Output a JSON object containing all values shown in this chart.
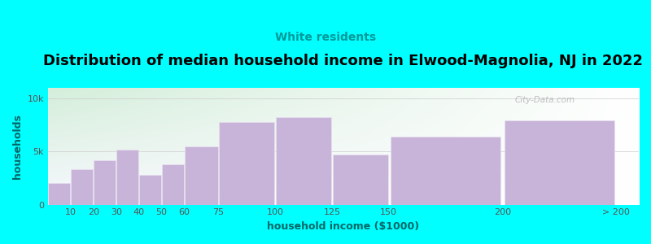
{
  "title": "Distribution of median household income in Elwood-Magnolia, NJ in 2022",
  "subtitle": "White residents",
  "xlabel": "household income ($1000)",
  "ylabel": "households",
  "background_outer": "#00FFFF",
  "background_inner_top_left": "#d4eeda",
  "background_inner_top_right": "#f0f0f8",
  "background_inner_bottom": "#f8f8ff",
  "bar_color": "#c8b4d8",
  "bar_edge_color": "#e8e0f0",
  "title_color": "#000000",
  "subtitle_color": "#009999",
  "axis_label_color": "#006666",
  "tick_color": "#555555",
  "watermark": "City-Data.com",
  "title_fontsize": 13,
  "subtitle_fontsize": 10,
  "axis_label_fontsize": 9,
  "tick_fontsize": 8,
  "bar_left_edges": [
    0,
    10,
    20,
    30,
    40,
    50,
    60,
    75,
    100,
    125,
    150,
    200
  ],
  "bar_widths": [
    10,
    10,
    10,
    10,
    10,
    10,
    15,
    25,
    25,
    25,
    50,
    50
  ],
  "bar_heights": [
    2000,
    3300,
    4200,
    5200,
    2800,
    3800,
    5500,
    7800,
    8200,
    4700,
    6400,
    7900
  ],
  "xtick_positions": [
    10,
    20,
    30,
    40,
    50,
    60,
    75,
    100,
    125,
    150,
    200,
    250
  ],
  "xtick_labels": [
    "10",
    "20",
    "30",
    "40",
    "50",
    "60",
    "75",
    "100",
    "125",
    "150",
    "200",
    "> 200"
  ],
  "xlim": [
    0,
    260
  ],
  "ylim": [
    0,
    11000
  ],
  "yticks": [
    0,
    5000,
    10000
  ],
  "ytick_labels": [
    "0",
    "5k",
    "10k"
  ]
}
